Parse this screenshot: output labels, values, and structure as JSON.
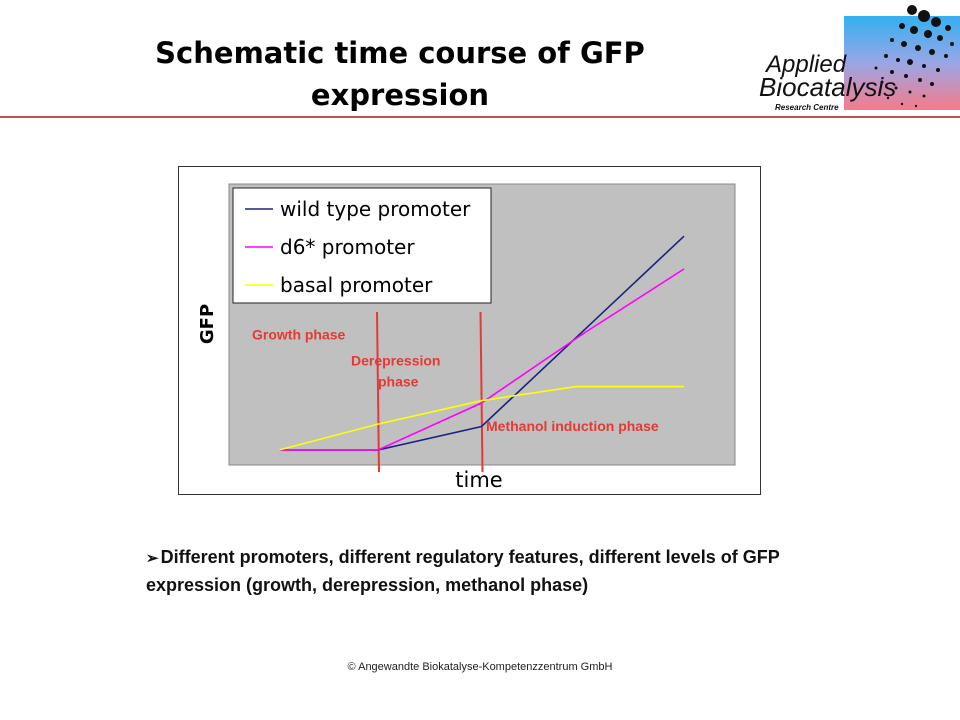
{
  "slide": {
    "title": "Schematic time course of GFP expression",
    "bullet_text": "Different promoters, different regulatory features, different levels of GFP expression (growth, derepression, methanol phase)",
    "footer": "© Angewandte Biokatalyse-Kompetenzzentrum  GmbH"
  },
  "logo": {
    "line1": "Applied",
    "line2": "Biocatalysis",
    "line3": "Research Centre"
  },
  "chart_data": {
    "type": "line",
    "title": "",
    "xlabel": "time",
    "ylabel": "GFP",
    "xlim": [
      0,
      100
    ],
    "ylim": [
      0,
      100
    ],
    "grid": false,
    "background": "#c0c0c0",
    "legend_position": "top-left",
    "series": [
      {
        "name": "wild type promoter",
        "color": "#1a237e",
        "x": [
          0,
          22,
          45,
          90
        ],
        "y": [
          0,
          0,
          10,
          91
        ]
      },
      {
        "name": "d6* promoter",
        "color": "#ff00ff",
        "x": [
          0,
          22,
          45,
          68,
          90
        ],
        "y": [
          0,
          0,
          20,
          50,
          77
        ]
      },
      {
        "name": "basal promoter",
        "color": "#ffff00",
        "x": [
          0,
          22,
          45,
          66,
          90
        ],
        "y": [
          0,
          11,
          21,
          27,
          27
        ]
      }
    ],
    "phase_markers": {
      "color": "#e53935",
      "x": [
        22,
        45
      ]
    },
    "annotations": [
      {
        "text": "Growth phase",
        "x": -6,
        "y": 47
      },
      {
        "text": "Derepression",
        "x": 16,
        "y": 36
      },
      {
        "text": "phase",
        "x": 22,
        "y": 27
      },
      {
        "text": "Methanol induction phase",
        "x": 46,
        "y": 8
      }
    ],
    "annotation_color": "#e53935"
  }
}
